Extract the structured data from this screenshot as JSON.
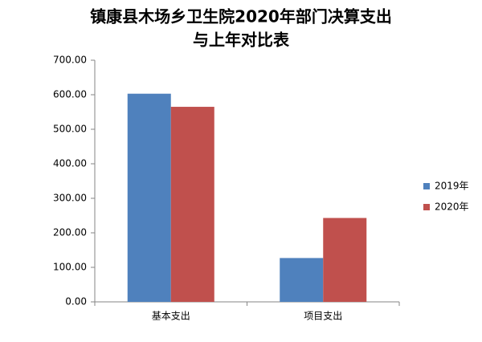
{
  "chart_data": {
    "type": "bar",
    "title": [
      "镇康县木场乡卫生院2020年部门决算支出",
      "与上年对比表"
    ],
    "categories": [
      "基本支出",
      "项目支出"
    ],
    "series": [
      {
        "name": "2019年",
        "color": "#4f81bd",
        "values": [
          603,
          127
        ]
      },
      {
        "name": "2020年",
        "color": "#c0504d",
        "values": [
          565,
          243
        ]
      }
    ],
    "ylim": [
      0,
      700
    ],
    "yticks": [
      {
        "value": 0,
        "label": "0.00"
      },
      {
        "value": 100,
        "label": "100.00"
      },
      {
        "value": 200,
        "label": "200.00"
      },
      {
        "value": 300,
        "label": "300.00"
      },
      {
        "value": 400,
        "label": "400.00"
      },
      {
        "value": 500,
        "label": "500.00"
      },
      {
        "value": 600,
        "label": "600.00"
      },
      {
        "value": 700,
        "label": "700.00"
      }
    ],
    "grid": false,
    "legend": "right"
  }
}
